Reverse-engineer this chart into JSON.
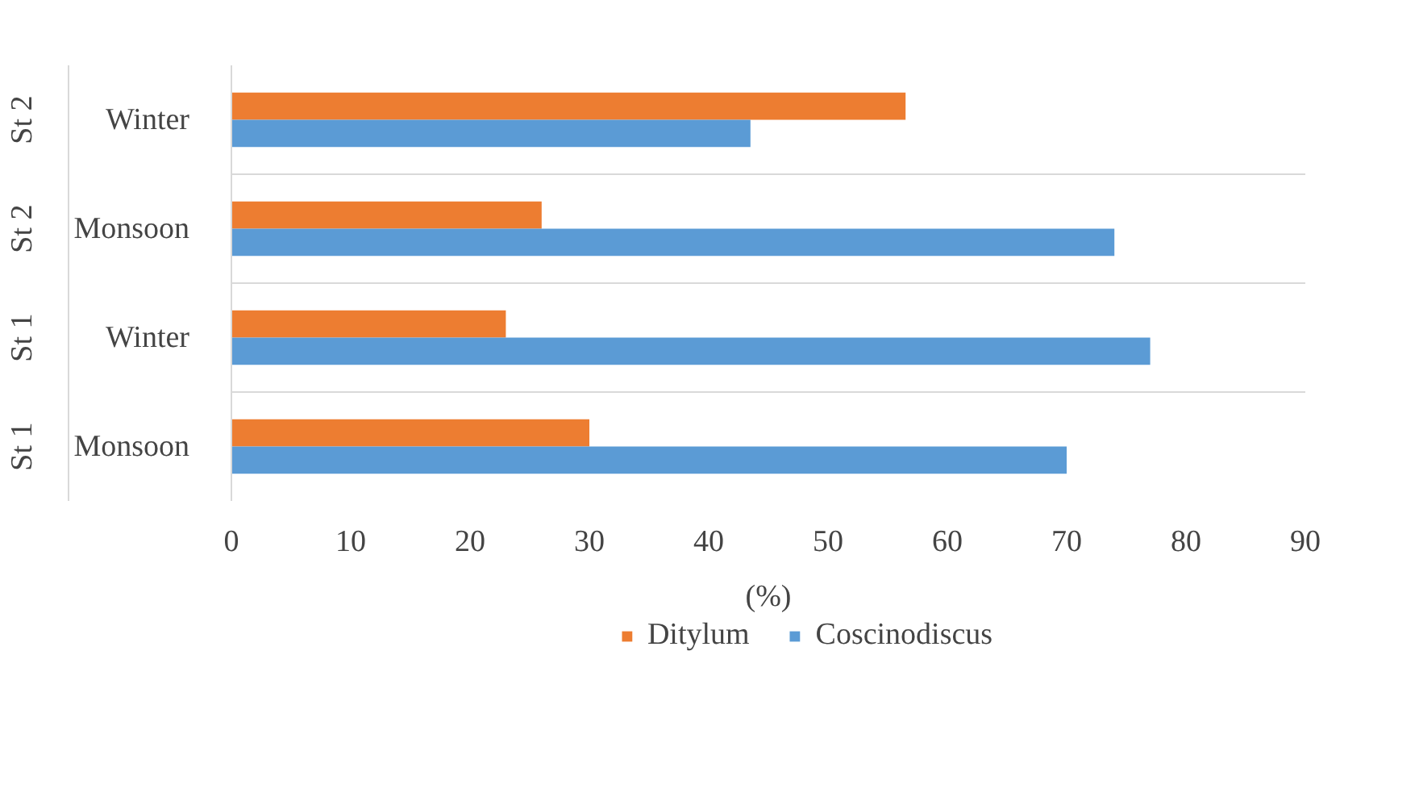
{
  "chart_data": {
    "type": "bar",
    "orientation": "horizontal",
    "categories": [
      "Winter",
      "Monsoon",
      "Winter",
      "Monsoon"
    ],
    "annotations": [
      "St 2",
      "St 2",
      "St 1",
      "St 1"
    ],
    "series": [
      {
        "name": "Ditylum",
        "color": "#ed7d31",
        "values": [
          56.5,
          26,
          23,
          30
        ]
      },
      {
        "name": "Coscinodiscus",
        "color": "#5b9bd5",
        "values": [
          43.5,
          74,
          77,
          70
        ]
      }
    ],
    "xlabel": "(%)",
    "xlim": [
      0,
      90
    ],
    "xticks": [
      0,
      10,
      20,
      30,
      40,
      50,
      60,
      70,
      80,
      90
    ],
    "grid": false,
    "legend": "bottom"
  }
}
